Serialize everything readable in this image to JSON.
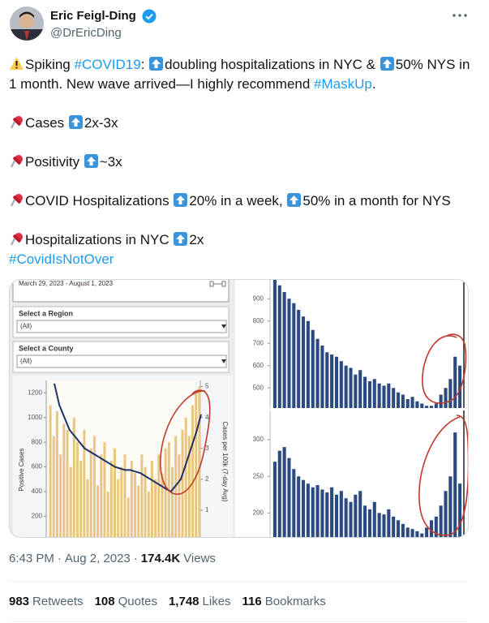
{
  "author": {
    "name": "Eric Feigl-Ding",
    "handle": "@DrEricDing"
  },
  "body": {
    "paragraphs": [
      [
        [
          {
            "icon": "warning"
          },
          {
            "text": "Spiking "
          },
          {
            "text": "#COVID19",
            "link": true
          },
          {
            "text": ": "
          },
          {
            "icon": "up"
          },
          {
            "text": "doubling hospitalizations in NYC & "
          },
          {
            "icon": "up"
          },
          {
            "text": "50% NYS in 1 month. New wave arrived—I highly recommend "
          },
          {
            "text": "#MaskUp",
            "link": true
          },
          {
            "text": "."
          }
        ]
      ],
      [
        [
          {
            "icon": "pin"
          },
          {
            "text": "Cases "
          },
          {
            "icon": "up"
          },
          {
            "text": "2x-3x"
          }
        ]
      ],
      [
        [
          {
            "icon": "pin"
          },
          {
            "text": "Positivity "
          },
          {
            "icon": "up"
          },
          {
            "text": "~3x"
          }
        ]
      ],
      [
        [
          {
            "icon": "pin"
          },
          {
            "text": "COVID Hospitalizations "
          },
          {
            "icon": "up"
          },
          {
            "text": "20% in a week, "
          },
          {
            "icon": "up"
          },
          {
            "text": "50% in a month for NYS"
          }
        ]
      ],
      [
        [
          {
            "icon": "pin"
          },
          {
            "text": "Hospitalizations in NYC "
          },
          {
            "icon": "up"
          },
          {
            "text": "2x"
          }
        ],
        [
          {
            "text": "#CovidIsNotOver",
            "link": true
          }
        ]
      ]
    ]
  },
  "media": {
    "left": {
      "date_range": "March 29, 2023 - August 1, 2023",
      "filters": [
        {
          "label": "Select a Region",
          "value": "(All)"
        },
        {
          "label": "Select a County",
          "value": "(All)"
        }
      ],
      "chart": {
        "type": "bar",
        "y_label": "Positive Cases",
        "y2_label": "Cases per 100k (7-day Avg)",
        "ylim": [
          0,
          1300
        ],
        "yticks": [
          0,
          200,
          400,
          600,
          800,
          1000,
          1200
        ],
        "y2lim": [
          0,
          5.2
        ],
        "y2ticks": [
          0,
          1,
          2,
          3,
          4,
          5
        ],
        "series": [
          {
            "color": "#e9c57f",
            "values": [
              1100,
              850,
              1050,
              700,
              950,
              900,
              600,
              1000,
              800,
              650,
              900,
              500,
              750,
              850,
              450,
              700,
              800,
              400,
              650,
              750,
              500,
              600,
              700,
              350,
              650,
              550,
              450,
              700,
              600,
              400,
              650,
              500,
              700,
              550,
              750,
              800,
              600,
              850,
              700,
              900,
              1000,
              850,
              1100,
              1200,
              1250
            ]
          },
          {
            "type": "line",
            "axis": "y2",
            "color": "#1c2f66",
            "values": [
              5.1,
              4.4,
              4.0,
              3.6,
              3.4,
              3.2,
              3.0,
              2.9,
              2.8,
              2.7,
              2.6,
              2.5,
              2.4,
              2.35,
              2.3,
              2.3,
              2.25,
              2.2,
              2.1,
              2.0,
              1.9,
              1.8,
              1.7,
              1.6,
              1.8,
              2.0,
              2.5,
              3.0,
              3.5,
              4.1
            ]
          }
        ]
      }
    },
    "right_top": {
      "type": "bar",
      "color": "#2b4a80",
      "ylim": [
        410,
        988
      ],
      "yticks": [
        500,
        600,
        700,
        800,
        900
      ],
      "values": [
        985,
        960,
        930,
        900,
        880,
        850,
        820,
        800,
        760,
        720,
        690,
        660,
        650,
        640,
        620,
        600,
        590,
        560,
        580,
        550,
        530,
        540,
        520,
        510,
        520,
        500,
        480,
        470,
        450,
        460,
        440,
        430,
        420,
        420,
        430,
        470,
        500,
        540,
        640,
        600
      ]
    },
    "right_bottom": {
      "type": "bar",
      "color": "#2b4a80",
      "ylim": [
        166,
        340
      ],
      "yticks": [
        200,
        250,
        300
      ],
      "values": [
        270,
        285,
        290,
        275,
        260,
        250,
        245,
        240,
        235,
        238,
        232,
        228,
        235,
        225,
        230,
        220,
        215,
        225,
        230,
        210,
        205,
        215,
        200,
        198,
        205,
        195,
        190,
        185,
        180,
        178,
        175,
        172,
        180,
        190,
        195,
        210,
        230,
        250,
        310,
        240
      ]
    }
  },
  "meta": {
    "time": "6:43 PM",
    "date": "Aug 2, 2023",
    "separator": "·",
    "views_count": "174.4K",
    "views_label": "Views"
  },
  "stats": [
    {
      "count": "983",
      "label": "Retweets"
    },
    {
      "count": "108",
      "label": "Quotes"
    },
    {
      "count": "1,748",
      "label": "Likes"
    },
    {
      "count": "116",
      "label": "Bookmarks"
    }
  ]
}
